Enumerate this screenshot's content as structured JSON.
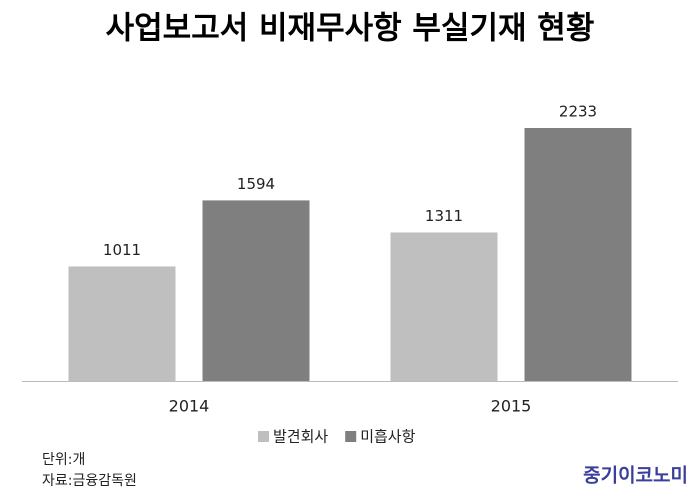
{
  "chart_data": {
    "type": "bar",
    "title": "사업보고서 비재무사항 부실기재 현황",
    "categories": [
      "2014",
      "2015"
    ],
    "series": [
      {
        "name": "발견회사",
        "color": "#bfbfbf",
        "values": [
          1011,
          1311
        ]
      },
      {
        "name": "미흡사항",
        "color": "#7f7f7f",
        "values": [
          1594,
          2233
        ]
      }
    ],
    "unit_note": "단위:개",
    "source": "자료:금융감독원",
    "logo": "중기이코노미"
  }
}
